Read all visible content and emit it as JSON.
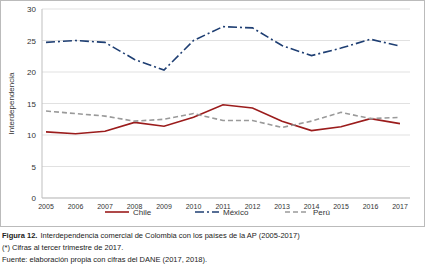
{
  "chart_data": {
    "type": "line",
    "y_label": "Interdependencia",
    "categories": [
      "2005",
      "2006",
      "2007",
      "2008",
      "2009",
      "2010",
      "2011",
      "2012",
      "2013",
      "2014",
      "2015",
      "2016",
      "2017"
    ],
    "series": [
      {
        "name": "Chile",
        "color": "#9b1c1c",
        "line_style": "solid",
        "values": [
          10.5,
          10.2,
          10.6,
          12.0,
          11.4,
          12.8,
          14.8,
          14.3,
          12.2,
          10.7,
          11.3,
          12.6,
          11.8
        ]
      },
      {
        "name": "México",
        "color": "#1f3f73",
        "line_style": "dashdot",
        "values": [
          24.7,
          25.0,
          24.7,
          22.0,
          20.3,
          25.0,
          27.2,
          27.0,
          24.2,
          22.6,
          23.8,
          25.2,
          24.1
        ]
      },
      {
        "name": "Perú",
        "color": "#9a9a9a",
        "line_style": "dashed",
        "values": [
          13.8,
          13.4,
          13.0,
          12.2,
          12.5,
          13.4,
          12.3,
          12.3,
          11.2,
          12.2,
          13.6,
          12.6,
          12.8
        ]
      }
    ],
    "ylim": [
      0,
      30
    ],
    "yticks": [
      0,
      5,
      10,
      15,
      20,
      25,
      30
    ],
    "grid": true,
    "legend": "bottom",
    "caption_label": "Figura 12.",
    "caption": "Interdependencia comercial de Colombia con los países de la AP (2005-2017)",
    "note": "(*) Cifras al tercer trimestre de 2017.",
    "source": "Fuente: elaboración propia con cifras del DANE (2017, 2018)."
  }
}
